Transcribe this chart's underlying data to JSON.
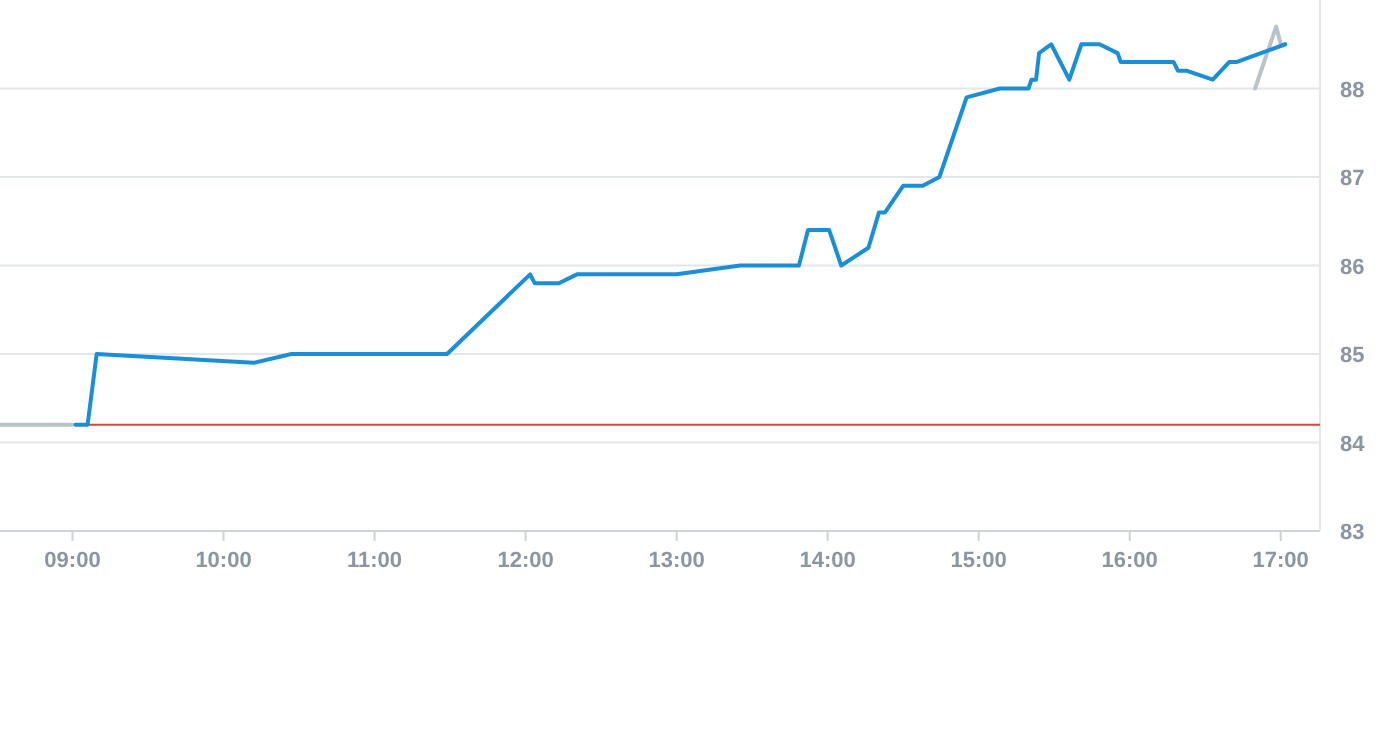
{
  "chart_data": {
    "type": "line",
    "xlim": [
      8.52,
      17.26
    ],
    "xticks": [
      {
        "value": 9,
        "label": "09:00"
      },
      {
        "value": 10,
        "label": "10:00"
      },
      {
        "value": 11,
        "label": "11:00"
      },
      {
        "value": 12,
        "label": "12:00"
      },
      {
        "value": 13,
        "label": "13:00"
      },
      {
        "value": 14,
        "label": "14:00"
      },
      {
        "value": 15,
        "label": "15:00"
      },
      {
        "value": 16,
        "label": "16:00"
      },
      {
        "value": 17,
        "label": "17:00"
      }
    ],
    "ylim": [
      83,
      89
    ],
    "yticks": [
      83,
      84,
      85,
      86,
      87,
      88
    ],
    "grid": "y",
    "marker": "none",
    "line_style": "solid",
    "ref_lines": [
      {
        "axis": "y",
        "value": 84.2,
        "label": null,
        "color": "#d9443f"
      }
    ],
    "series": [
      {
        "color": "#b9c3cc",
        "x": [
          8.52,
          9.0,
          9.01,
          16.83,
          16.97,
          17.0
        ],
        "values": [
          84.2,
          84.2,
          null,
          88.0,
          88.7,
          88.5
        ]
      },
      {
        "color": "#1a8fd8",
        "x": [
          9.02,
          9.1,
          9.16,
          10.2,
          10.45,
          11.48,
          12.03,
          12.06,
          12.22,
          12.34,
          13.0,
          13.42,
          13.81,
          13.87,
          14.01,
          14.09,
          14.27,
          14.34,
          14.38,
          14.46,
          14.5,
          14.63,
          14.74,
          14.92,
          15.14,
          15.33,
          15.35,
          15.38,
          15.4,
          15.48,
          15.6,
          15.68,
          15.8,
          15.92,
          15.94,
          16.29,
          16.32,
          16.38,
          16.55,
          16.66,
          16.71,
          17.03
        ],
        "values": [
          84.2,
          84.2,
          85.0,
          84.9,
          85.0,
          85.0,
          85.9,
          85.8,
          85.8,
          85.9,
          85.9,
          86.0,
          86.0,
          86.4,
          86.4,
          86.0,
          86.2,
          86.6,
          86.6,
          86.8,
          86.9,
          86.9,
          87.0,
          87.9,
          88.0,
          88.0,
          88.1,
          88.1,
          88.4,
          88.5,
          88.1,
          88.5,
          88.5,
          88.4,
          88.3,
          88.3,
          88.2,
          88.2,
          88.1,
          88.3,
          88.3,
          88.5
        ]
      }
    ]
  }
}
